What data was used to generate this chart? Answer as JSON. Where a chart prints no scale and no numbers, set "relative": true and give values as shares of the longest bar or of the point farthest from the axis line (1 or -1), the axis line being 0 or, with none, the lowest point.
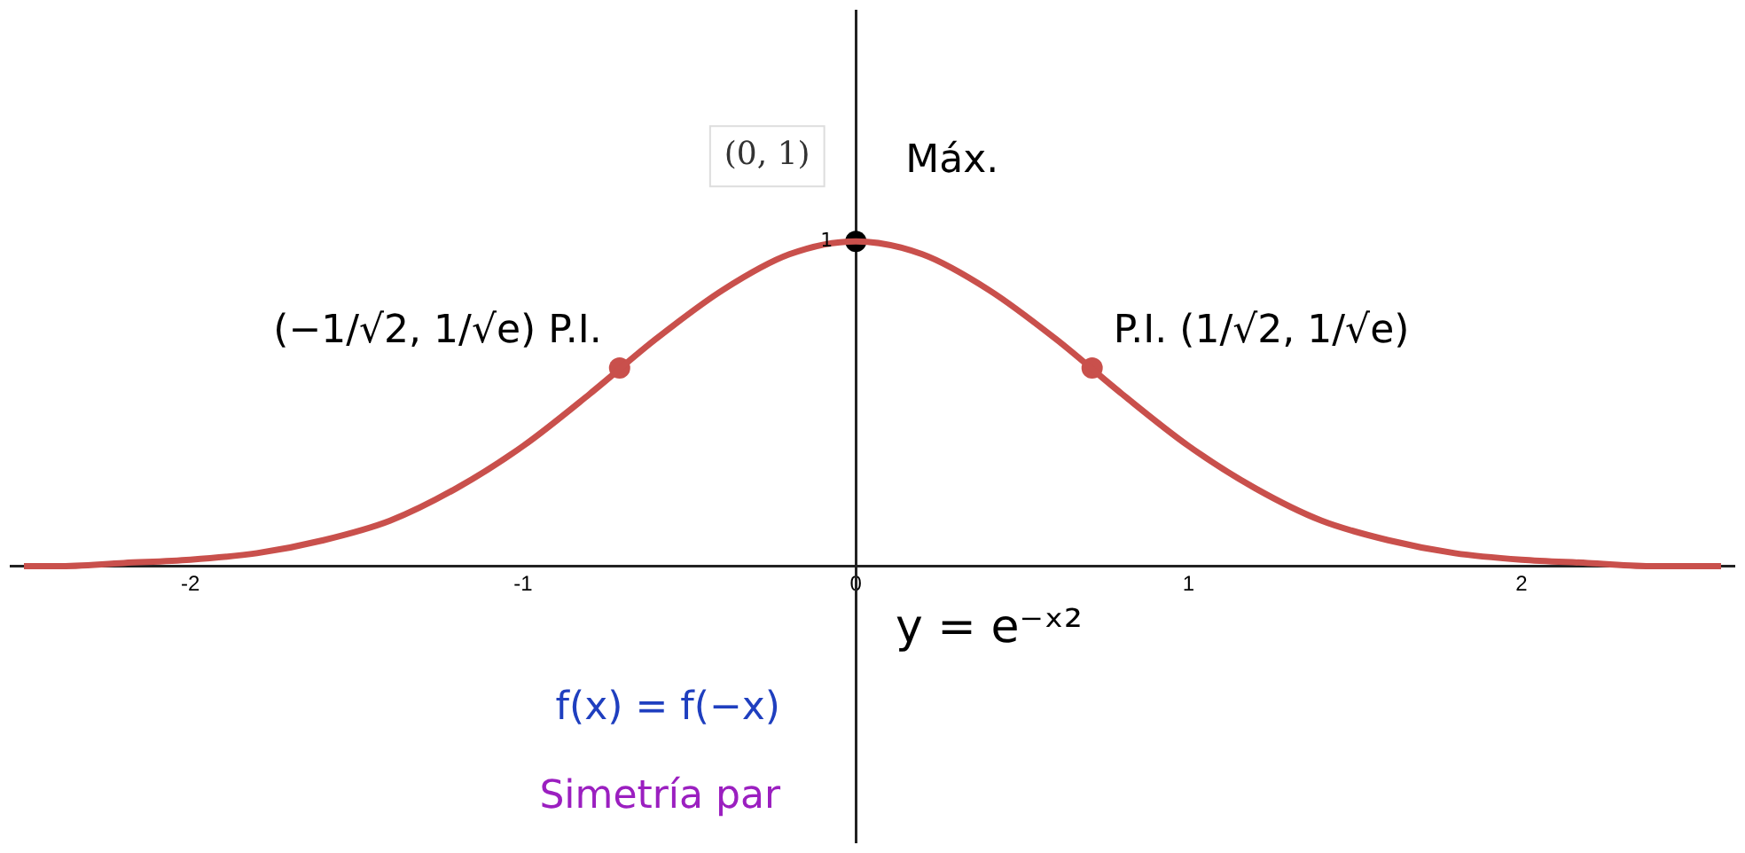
{
  "chart_data": {
    "type": "line",
    "xlim": [
      -2.54,
      2.64
    ],
    "xticks": [
      -2,
      -1,
      0,
      1,
      2
    ],
    "relative": true,
    "legend": false,
    "series": [
      {
        "type": "line",
        "color": "#c9504c",
        "x": [
          -2.5,
          -2.4,
          -2.2,
          -2.0,
          -1.8,
          -1.6,
          -1.4,
          -1.2,
          -1.0,
          -0.8,
          -0.6,
          -0.4,
          -0.2,
          0,
          0.2,
          0.4,
          0.6,
          0.8,
          1.0,
          1.2,
          1.4,
          1.6,
          1.8,
          2.0,
          2.2,
          2.4,
          2.6
        ],
        "values": [
          0.0,
          0.0,
          0.01,
          0.02,
          0.04,
          0.08,
          0.14,
          0.24,
          0.37,
          0.53,
          0.7,
          0.85,
          0.96,
          1.0,
          0.96,
          0.85,
          0.7,
          0.53,
          0.37,
          0.24,
          0.14,
          0.08,
          0.04,
          0.02,
          0.01,
          0.0,
          0.0
        ]
      },
      {
        "type": "scatter",
        "color": "#c9504c",
        "x": [
          -0.71,
          0.71
        ],
        "values": [
          0.61,
          0.61
        ]
      },
      {
        "type": "scatter",
        "color": "#000000",
        "x": [
          0
        ],
        "values": [
          1
        ]
      }
    ],
    "annotations": [
      {
        "text": "1",
        "x": 0,
        "y": 1
      },
      {
        "text": "(0, 1)",
        "x": 0,
        "y": 1
      },
      {
        "text": "Máx.",
        "x": 0,
        "y": 1
      },
      {
        "text": "(−1/√2, 1/√e) P.I.",
        "x": -0.71,
        "y": 0.61
      },
      {
        "text": "P.I. (1/√2, 1/√e)",
        "x": 0.71,
        "y": 0.61
      },
      "y = e⁻ˣ²",
      "f(x) = f(−x)",
      "Simetría par"
    ]
  }
}
